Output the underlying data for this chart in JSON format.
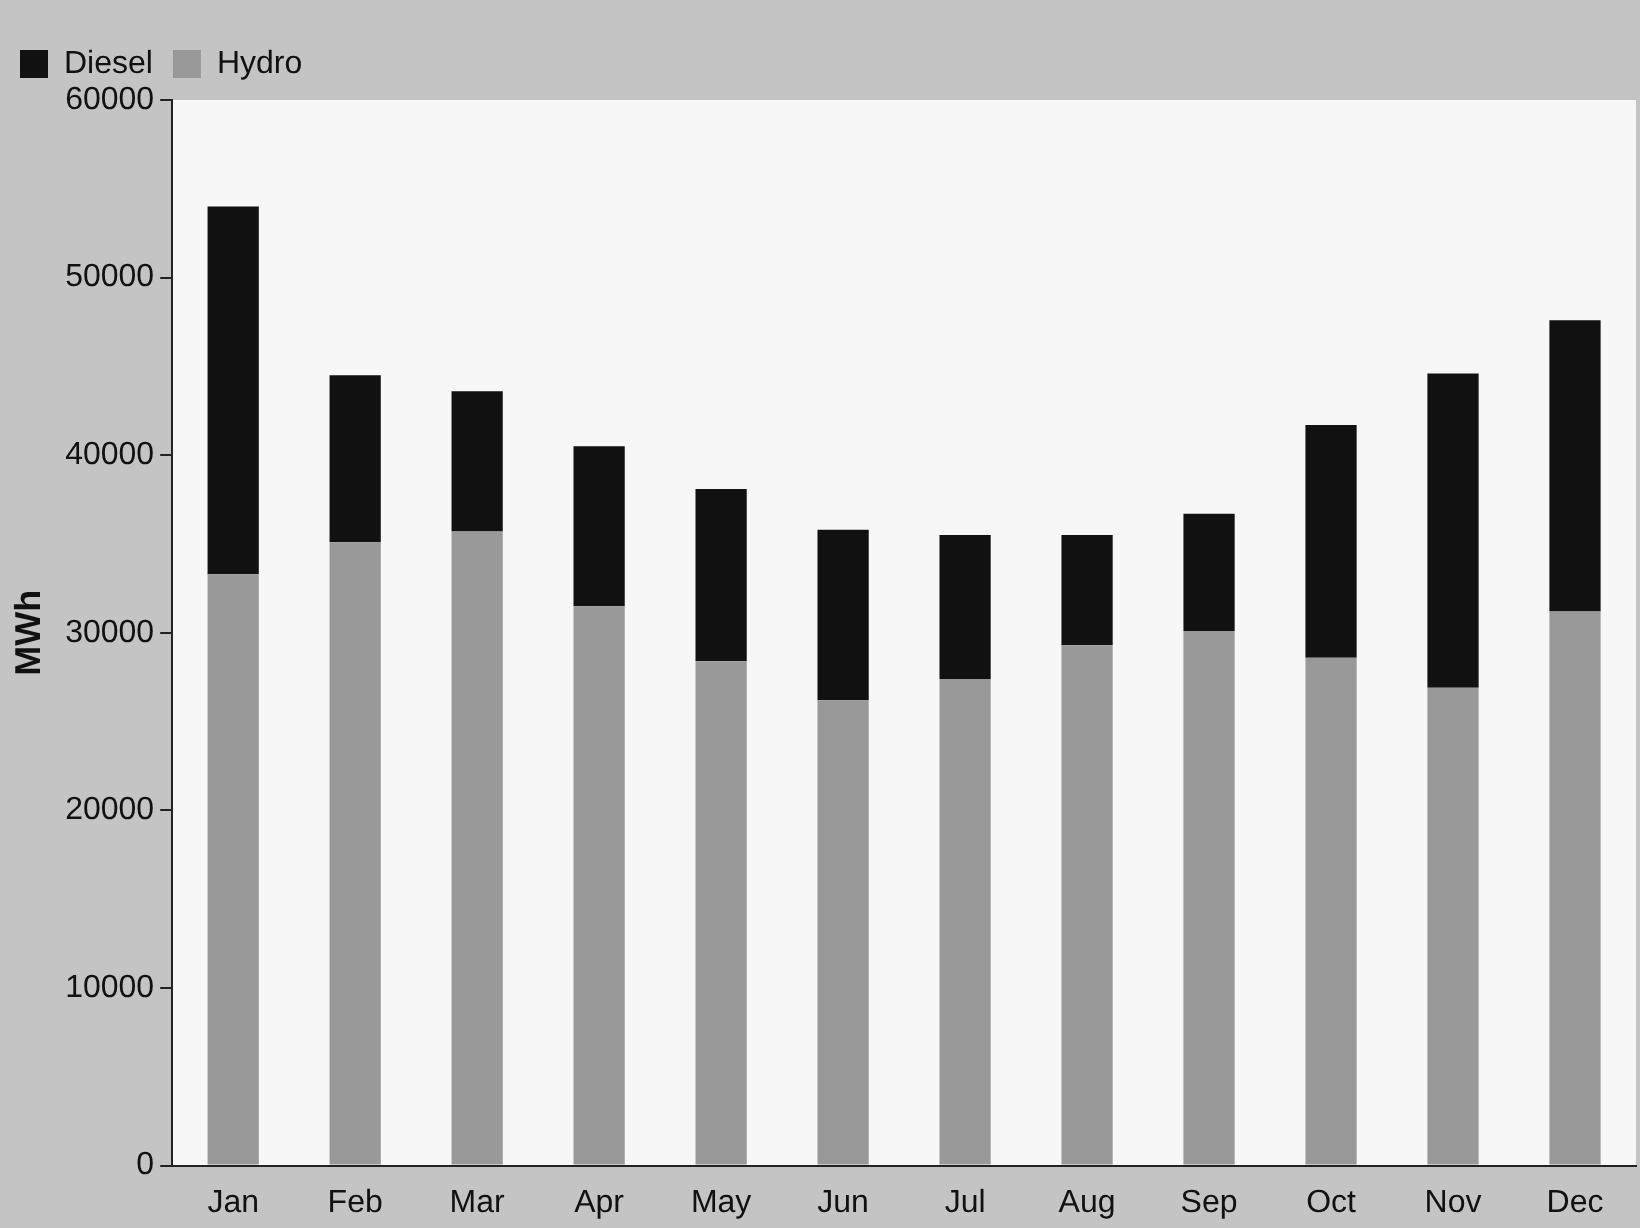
{
  "chart_data": {
    "type": "bar",
    "stacked": true,
    "ylabel": "MWh",
    "categories": [
      "Jan",
      "Feb",
      "Mar",
      "Apr",
      "May",
      "Jun",
      "Jul",
      "Aug",
      "Sep",
      "Oct",
      "Nov",
      "Dec"
    ],
    "series": [
      {
        "name": "Hydro",
        "color": "#999999",
        "values": [
          33300,
          35100,
          35700,
          31500,
          28400,
          26200,
          27400,
          29300,
          30100,
          28600,
          26900,
          31200
        ]
      },
      {
        "name": "Diesel",
        "color": "#111111",
        "values": [
          20700,
          9400,
          7900,
          9000,
          9700,
          9600,
          8100,
          6200,
          6600,
          13100,
          17700,
          16400
        ]
      }
    ],
    "ylim": [
      0,
      60000
    ],
    "yticks": [
      0,
      10000,
      20000,
      30000,
      40000,
      50000,
      60000
    ],
    "grid": false,
    "legend": "top left"
  }
}
